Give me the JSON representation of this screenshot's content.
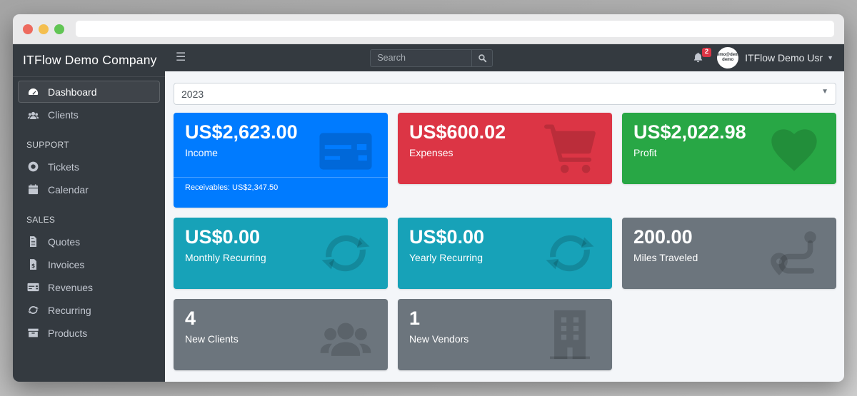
{
  "chrome": {
    "address_value": "",
    "window_buttons": [
      "close",
      "minimize",
      "maximize"
    ]
  },
  "navbar": {
    "menu_icon": "hamburger-icon",
    "search": {
      "placeholder": "Search",
      "button_icon": "search-icon"
    },
    "notifications": {
      "icon": "bell-icon",
      "count": "2",
      "badge_color": "#dc3545"
    },
    "user": {
      "name": "ITFlow Demo Usr",
      "avatar_text": "demo@demo demo",
      "caret_icon": "chevron-down-icon"
    }
  },
  "sidebar": {
    "brand": "ITFlow Demo Company",
    "sections": [
      {
        "header": "",
        "items": [
          {
            "label": "Dashboard",
            "icon": "gauge",
            "active": true
          },
          {
            "label": "Clients",
            "icon": "users",
            "active": false
          }
        ]
      },
      {
        "header": "SUPPORT",
        "items": [
          {
            "label": "Tickets",
            "icon": "life-ring",
            "active": false
          },
          {
            "label": "Calendar",
            "icon": "calendar",
            "active": false
          }
        ]
      },
      {
        "header": "SALES",
        "items": [
          {
            "label": "Quotes",
            "icon": "file",
            "active": false
          },
          {
            "label": "Invoices",
            "icon": "file-dollar",
            "active": false
          },
          {
            "label": "Revenues",
            "icon": "credit-card",
            "active": false
          },
          {
            "label": "Recurring",
            "icon": "sync",
            "active": false
          },
          {
            "label": "Products",
            "icon": "box",
            "active": false
          }
        ]
      }
    ]
  },
  "main": {
    "year_select": {
      "value": "2023"
    },
    "cards": [
      {
        "value": "US$2,623.00",
        "label": "Income",
        "footer": "Receivables: US$2,347.50",
        "color": "#007bff",
        "icon": "credit-card"
      },
      {
        "value": "US$600.02",
        "label": "Expenses",
        "footer": "",
        "color": "#dc3545",
        "icon": "cart"
      },
      {
        "value": "US$2,022.98",
        "label": "Profit",
        "footer": "",
        "color": "#28a745",
        "icon": "heart"
      },
      {
        "value": "US$0.00",
        "label": "Monthly Recurring",
        "footer": "",
        "color": "#17a2b8",
        "icon": "sync"
      },
      {
        "value": "US$0.00",
        "label": "Yearly Recurring",
        "footer": "",
        "color": "#17a2b8",
        "icon": "sync"
      },
      {
        "value": "200.00",
        "label": "Miles Traveled",
        "footer": "",
        "color": "#6c757d",
        "icon": "route"
      },
      {
        "value": "4",
        "label": "New Clients",
        "footer": "",
        "color": "#6c757d",
        "icon": "users"
      },
      {
        "value": "1",
        "label": "New Vendors",
        "footer": "",
        "color": "#6c757d",
        "icon": "building"
      }
    ]
  },
  "colors": {
    "primary": "#007bff",
    "danger": "#dc3545",
    "success": "#28a745",
    "info": "#17a2b8",
    "secondary": "#6c757d",
    "dark": "#343a40",
    "content_bg": "#f4f6f9"
  }
}
